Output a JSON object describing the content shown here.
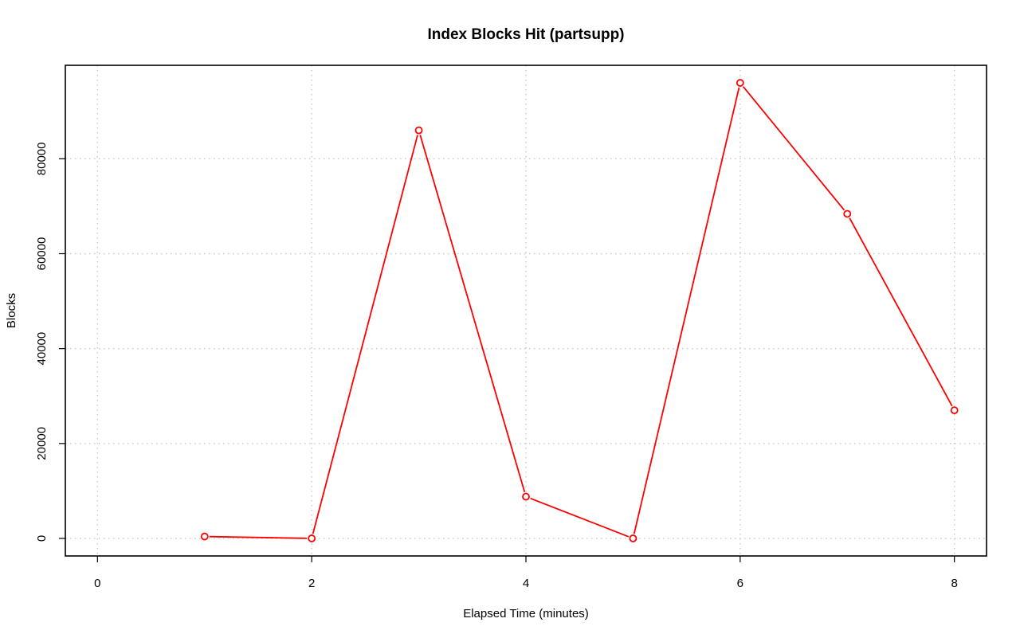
{
  "chart_data": {
    "type": "line",
    "title": "Index Blocks Hit (partsupp)",
    "xlabel": "Elapsed Time (minutes)",
    "ylabel": "Blocks",
    "xlim": [
      -0.3,
      8.3
    ],
    "ylim": [
      -3700,
      99700
    ],
    "xticks": [
      0,
      2,
      4,
      6,
      8
    ],
    "yticks": [
      0,
      20000,
      40000,
      60000,
      80000
    ],
    "grid": true,
    "legend": "none",
    "series": [
      {
        "color": "#ff0000",
        "x": [
          1,
          2,
          3,
          4,
          5,
          6,
          7,
          8
        ],
        "y": [
          400,
          0,
          86000,
          8800,
          0,
          96000,
          68400,
          27000
        ]
      }
    ]
  }
}
